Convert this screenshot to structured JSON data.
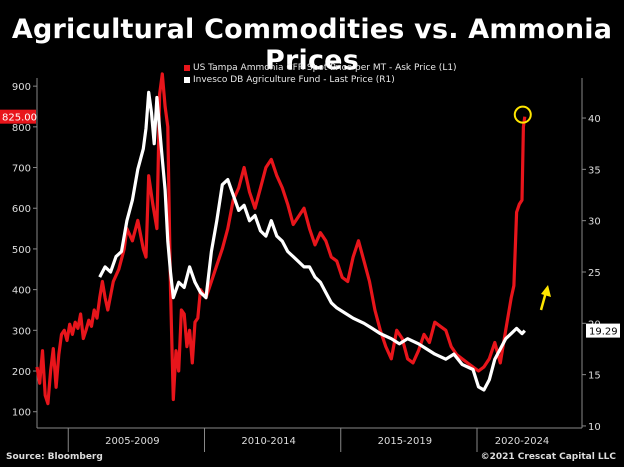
{
  "title": "Agricultural Commodities vs. Ammonia Prices",
  "source": "Source: Bloomberg",
  "copyright": "©2021 Crescat Capital LLC",
  "colors": {
    "ammonia": "#e8151b",
    "fund": "#ffffff",
    "marker": "#ffe600",
    "background": "#000000"
  },
  "chart_data": {
    "type": "line",
    "title": "Agricultural Commodities vs. Ammonia Prices",
    "legend_position": "top-center",
    "grid": false,
    "x_labels": [
      "2005-2009",
      "2010-2014",
      "2015-2019",
      "2020-2024"
    ],
    "xlim": [
      2004.0,
      2024.0
    ],
    "y_left": {
      "ylim": [
        60,
        920
      ],
      "ticks": [
        100,
        200,
        300,
        400,
        500,
        600,
        700,
        800,
        900
      ]
    },
    "y_right": {
      "ylim": [
        9.8,
        43.9
      ],
      "ticks": [
        10,
        15,
        20,
        25,
        30,
        35,
        40
      ]
    },
    "last_values": {
      "ammonia": "825.00",
      "fund": "19.29"
    },
    "series": [
      {
        "name": "US Tampa Ammonia CFR Spot Price per MT - Ask Price (L1)",
        "axis": "left",
        "x": [
          2004.0,
          2004.1,
          2004.2,
          2004.3,
          2004.4,
          2004.5,
          2004.6,
          2004.7,
          2004.8,
          2004.9,
          2005.0,
          2005.1,
          2005.2,
          2005.3,
          2005.4,
          2005.5,
          2005.6,
          2005.7,
          2005.8,
          2005.9,
          2006.0,
          2006.1,
          2006.2,
          2006.3,
          2006.4,
          2006.5,
          2006.6,
          2006.8,
          2007.0,
          2007.2,
          2007.3,
          2007.5,
          2007.7,
          2007.9,
          2008.0,
          2008.1,
          2008.25,
          2008.4,
          2008.5,
          2008.6,
          2008.7,
          2008.8,
          2008.9,
          2009.0,
          2009.1,
          2009.2,
          2009.3,
          2009.4,
          2009.5,
          2009.6,
          2009.7,
          2009.8,
          2009.9,
          2010.0,
          2010.2,
          2010.4,
          2010.6,
          2010.8,
          2011.0,
          2011.2,
          2011.4,
          2011.6,
          2011.8,
          2012.0,
          2012.2,
          2012.4,
          2012.6,
          2012.8,
          2013.0,
          2013.2,
          2013.4,
          2013.6,
          2013.8,
          2014.0,
          2014.2,
          2014.4,
          2014.6,
          2014.8,
          2015.0,
          2015.2,
          2015.4,
          2015.6,
          2015.8,
          2016.0,
          2016.2,
          2016.4,
          2016.6,
          2016.8,
          2017.0,
          2017.2,
          2017.4,
          2017.6,
          2017.8,
          2018.0,
          2018.2,
          2018.4,
          2018.6,
          2018.8,
          2019.0,
          2019.2,
          2019.4,
          2019.6,
          2019.8,
          2020.0,
          2020.2,
          2020.4,
          2020.6,
          2020.8,
          2021.0,
          2021.2,
          2021.4,
          2021.5,
          2021.6,
          2021.7,
          2021.8,
          2021.85,
          2021.9
        ],
        "values": [
          210,
          170,
          250,
          140,
          120,
          200,
          255,
          160,
          240,
          290,
          300,
          275,
          315,
          290,
          320,
          305,
          340,
          280,
          300,
          325,
          310,
          350,
          330,
          380,
          420,
          380,
          350,
          420,
          450,
          500,
          550,
          520,
          570,
          500,
          480,
          680,
          610,
          550,
          880,
          930,
          850,
          800,
          400,
          130,
          250,
          200,
          350,
          340,
          260,
          300,
          220,
          320,
          330,
          400,
          380,
          420,
          460,
          500,
          550,
          620,
          650,
          700,
          640,
          600,
          650,
          700,
          720,
          680,
          650,
          610,
          560,
          580,
          600,
          550,
          510,
          540,
          520,
          480,
          470,
          430,
          420,
          480,
          520,
          470,
          420,
          350,
          300,
          260,
          230,
          300,
          280,
          230,
          220,
          250,
          290,
          270,
          320,
          310,
          300,
          260,
          240,
          230,
          220,
          210,
          200,
          210,
          230,
          270,
          220,
          300,
          380,
          410,
          590,
          610,
          620,
          800,
          825
        ]
      },
      {
        "name": "Invesco DB Agriculture Fund - Last Price (R1)",
        "axis": "right",
        "x": [
          2006.3,
          2006.5,
          2006.7,
          2006.9,
          2007.1,
          2007.3,
          2007.5,
          2007.7,
          2007.9,
          2008.0,
          2008.1,
          2008.2,
          2008.3,
          2008.4,
          2008.5,
          2008.6,
          2008.7,
          2008.8,
          2008.9,
          2009.0,
          2009.2,
          2009.4,
          2009.6,
          2009.8,
          2010.0,
          2010.2,
          2010.4,
          2010.6,
          2010.8,
          2011.0,
          2011.2,
          2011.4,
          2011.6,
          2011.8,
          2012.0,
          2012.2,
          2012.4,
          2012.6,
          2012.8,
          2013.0,
          2013.2,
          2013.4,
          2013.6,
          2013.8,
          2014.0,
          2014.2,
          2014.4,
          2014.6,
          2014.8,
          2015.0,
          2015.3,
          2015.6,
          2016.0,
          2016.3,
          2016.6,
          2017.0,
          2017.3,
          2017.6,
          2018.0,
          2018.3,
          2018.6,
          2019.0,
          2019.3,
          2019.6,
          2020.0,
          2020.2,
          2020.4,
          2020.6,
          2020.8,
          2021.0,
          2021.2,
          2021.4,
          2021.6,
          2021.8,
          2021.9
        ],
        "values": [
          24.5,
          25.5,
          25.0,
          26.5,
          27.0,
          30.0,
          32.0,
          35.0,
          37.0,
          39.0,
          42.5,
          40.5,
          37.5,
          42.0,
          39.0,
          36.0,
          33.0,
          28.0,
          25.0,
          22.5,
          24.0,
          23.5,
          25.5,
          24.0,
          23.0,
          22.5,
          27.0,
          30.0,
          33.5,
          34.0,
          32.5,
          31.0,
          31.5,
          30.0,
          30.5,
          29.0,
          28.5,
          30.0,
          28.5,
          28.0,
          27.0,
          26.5,
          26.0,
          25.5,
          25.5,
          24.5,
          24.0,
          23.0,
          22.0,
          21.5,
          21.0,
          20.5,
          20.0,
          19.5,
          19.0,
          18.5,
          18.0,
          18.5,
          18.0,
          17.5,
          17.0,
          16.5,
          17.0,
          16.0,
          15.5,
          13.8,
          13.5,
          14.5,
          16.5,
          17.5,
          18.5,
          19.0,
          19.5,
          19.0,
          19.29
        ]
      }
    ]
  }
}
